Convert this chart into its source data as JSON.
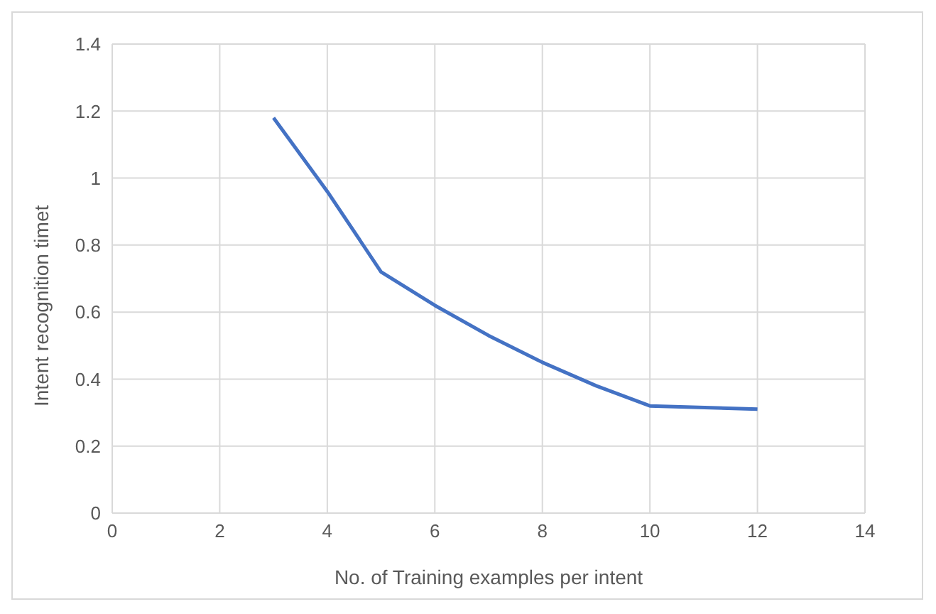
{
  "chart_data": {
    "type": "line",
    "xlabel": "No. of Training examples per intent",
    "ylabel": "Intent recognition timet",
    "x": [
      3,
      4,
      5,
      6,
      7,
      8,
      9,
      10,
      12
    ],
    "series": [
      {
        "color": "#4472c4",
        "values": [
          1.18,
          0.96,
          0.72,
          0.62,
          0.53,
          0.45,
          0.38,
          0.32,
          0.31
        ]
      }
    ],
    "xlim": [
      0,
      14
    ],
    "xticks": [
      0,
      2,
      4,
      6,
      8,
      10,
      12,
      14
    ],
    "ylim": [
      0,
      1.4
    ],
    "yticks": [
      0,
      0.2,
      0.4,
      0.6,
      0.8,
      1,
      1.2,
      1.4
    ],
    "grid": true,
    "legend": false,
    "marker": "none",
    "line_style": "solid"
  }
}
